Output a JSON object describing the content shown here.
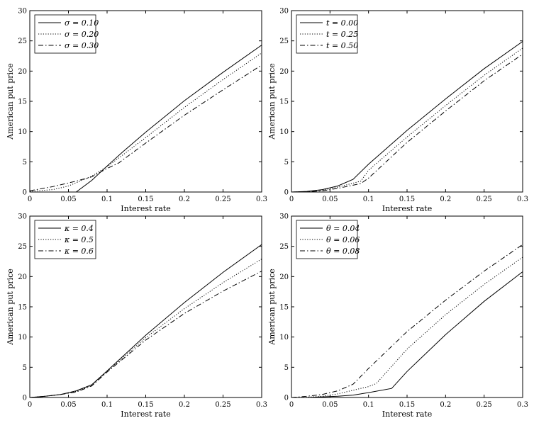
{
  "chart_data": [
    {
      "type": "line",
      "xlabel": "Interest rate",
      "ylabel": "American put price",
      "xlim": [
        0,
        0.3
      ],
      "ylim": [
        0,
        30
      ],
      "xticks": [
        "0",
        "0.05",
        "0.1",
        "0.15",
        "0.2",
        "0.25",
        "0.3"
      ],
      "yticks": [
        "0",
        "5",
        "10",
        "15",
        "20",
        "25",
        "30"
      ],
      "legend_position": "top-left",
      "series": [
        {
          "name": "σ = 0.10",
          "style": "solid",
          "x": [
            0,
            0.03,
            0.06,
            0.08,
            0.1,
            0.12,
            0.15,
            0.2,
            0.25,
            0.3
          ],
          "y": [
            0,
            0,
            0,
            1.9,
            4.3,
            6.6,
            9.9,
            15.1,
            19.8,
            24.3
          ]
        },
        {
          "name": "σ = 0.20",
          "style": "dotted",
          "x": [
            0,
            0.03,
            0.05,
            0.08,
            0.1,
            0.12,
            0.15,
            0.2,
            0.25,
            0.3
          ],
          "y": [
            0.1,
            0.4,
            1.0,
            2.6,
            4.2,
            6.1,
            9.0,
            14.0,
            18.6,
            23.0
          ]
        },
        {
          "name": "σ = 0.30",
          "style": "dashdot",
          "x": [
            0,
            0.03,
            0.06,
            0.08,
            0.1,
            0.115,
            0.15,
            0.2,
            0.25,
            0.3
          ],
          "y": [
            0.2,
            0.9,
            1.8,
            2.5,
            3.9,
            4.8,
            8.1,
            12.7,
            16.9,
            21.0
          ]
        }
      ]
    },
    {
      "type": "line",
      "xlabel": "Interest rate",
      "ylabel": "American put price",
      "xlim": [
        0,
        0.3
      ],
      "ylim": [
        0,
        30
      ],
      "xticks": [
        "0",
        "0.05",
        "0.1",
        "0.15",
        "0.2",
        "0.25",
        "0.3"
      ],
      "yticks": [
        "0",
        "5",
        "10",
        "15",
        "20",
        "25",
        "30"
      ],
      "legend_position": "top-left",
      "series": [
        {
          "name": "t = 0.00",
          "style": "solid",
          "x": [
            0,
            0.02,
            0.04,
            0.06,
            0.08,
            0.1,
            0.15,
            0.2,
            0.25,
            0.3
          ],
          "y": [
            0,
            0.1,
            0.4,
            1.0,
            2.1,
            4.6,
            10.2,
            15.4,
            20.4,
            24.9
          ]
        },
        {
          "name": "t = 0.25",
          "style": "dotted",
          "x": [
            0,
            0.02,
            0.04,
            0.06,
            0.09,
            0.1,
            0.15,
            0.2,
            0.25,
            0.3
          ],
          "y": [
            0,
            0.05,
            0.3,
            0.8,
            1.8,
            3.6,
            9.1,
            14.3,
            19.3,
            23.8
          ]
        },
        {
          "name": "t = 0.50",
          "style": "dashdot",
          "x": [
            0,
            0.02,
            0.04,
            0.06,
            0.09,
            0.1,
            0.15,
            0.2,
            0.25,
            0.3
          ],
          "y": [
            0,
            0.05,
            0.2,
            0.6,
            1.4,
            2.3,
            8.2,
            13.4,
            18.4,
            22.8
          ]
        }
      ]
    },
    {
      "type": "line",
      "xlabel": "Interest rate",
      "ylabel": "American put price",
      "xlim": [
        0,
        0.3
      ],
      "ylim": [
        0,
        30
      ],
      "xticks": [
        "0",
        "0.05",
        "0.1",
        "0.15",
        "0.2",
        "0.25",
        "0.3"
      ],
      "yticks": [
        "0",
        "5",
        "10",
        "15",
        "20",
        "25",
        "30"
      ],
      "legend_position": "top-left",
      "series": [
        {
          "name": "κ = 0.4",
          "style": "solid",
          "x": [
            0,
            0.02,
            0.04,
            0.06,
            0.08,
            0.1,
            0.15,
            0.2,
            0.25,
            0.3
          ],
          "y": [
            0,
            0.2,
            0.5,
            1.1,
            2.1,
            4.4,
            10.3,
            15.7,
            20.7,
            25.3
          ]
        },
        {
          "name": "κ = 0.5",
          "style": "dotted",
          "x": [
            0,
            0.02,
            0.04,
            0.06,
            0.08,
            0.1,
            0.15,
            0.2,
            0.25,
            0.3
          ],
          "y": [
            0,
            0.2,
            0.5,
            1.0,
            2.0,
            4.3,
            9.9,
            14.7,
            19.0,
            22.9
          ]
        },
        {
          "name": "κ = 0.6",
          "style": "dashdot",
          "x": [
            0,
            0.02,
            0.04,
            0.06,
            0.08,
            0.1,
            0.15,
            0.2,
            0.25,
            0.3
          ],
          "y": [
            0,
            0.2,
            0.5,
            0.9,
            1.9,
            4.2,
            9.5,
            13.9,
            17.6,
            20.9
          ]
        }
      ]
    },
    {
      "type": "line",
      "xlabel": "Interest rate",
      "ylabel": "American put price",
      "xlim": [
        0,
        0.3
      ],
      "ylim": [
        0,
        30
      ],
      "xticks": [
        "0",
        "0.05",
        "0.1",
        "0.15",
        "0.2",
        "0.25",
        "0.3"
      ],
      "yticks": [
        "0",
        "5",
        "10",
        "15",
        "20",
        "25",
        "30"
      ],
      "legend_position": "top-left",
      "series": [
        {
          "name": "θ = 0.04",
          "style": "solid",
          "x": [
            0,
            0.02,
            0.04,
            0.06,
            0.08,
            0.1,
            0.13,
            0.15,
            0.2,
            0.25,
            0.3
          ],
          "y": [
            0,
            0,
            0.1,
            0.2,
            0.4,
            0.8,
            1.5,
            4.3,
            10.4,
            15.9,
            20.8
          ]
        },
        {
          "name": "θ = 0.06",
          "style": "dotted",
          "x": [
            0,
            0.02,
            0.04,
            0.06,
            0.08,
            0.1,
            0.11,
            0.15,
            0.2,
            0.25,
            0.3
          ],
          "y": [
            0,
            0.05,
            0.2,
            0.6,
            1.2,
            1.8,
            2.3,
            8.0,
            13.7,
            18.7,
            23.2
          ]
        },
        {
          "name": "θ = 0.08",
          "style": "dashdot",
          "x": [
            0,
            0.02,
            0.04,
            0.06,
            0.08,
            0.1,
            0.15,
            0.2,
            0.25,
            0.3
          ],
          "y": [
            0,
            0.2,
            0.5,
            1.1,
            2.2,
            4.8,
            10.9,
            16.1,
            20.9,
            25.3
          ]
        }
      ]
    }
  ]
}
